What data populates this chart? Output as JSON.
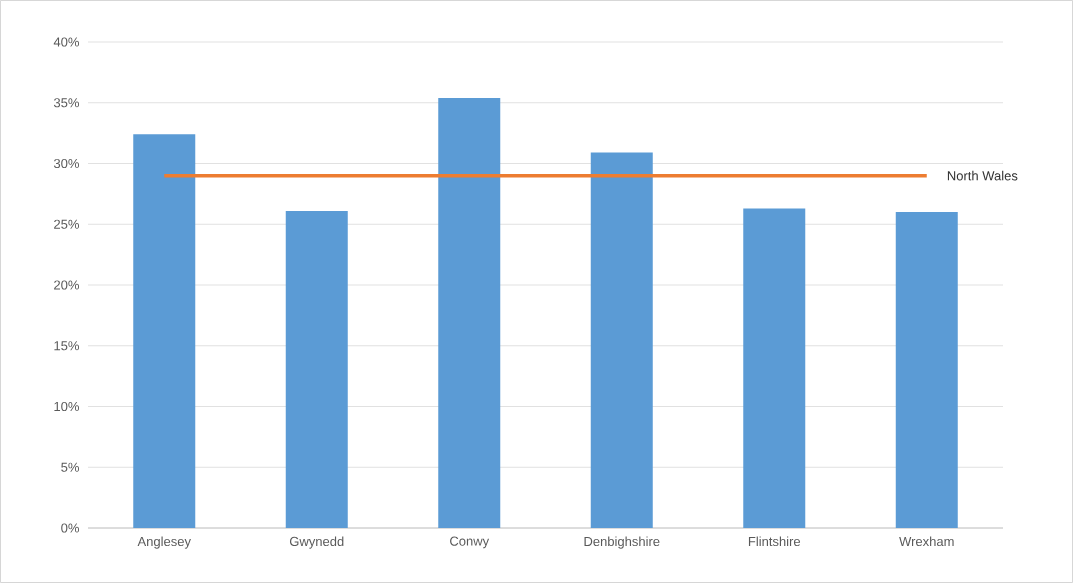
{
  "chart_data": {
    "type": "bar",
    "categories": [
      "Anglesey",
      "Gwynedd",
      "Conwy",
      "Denbighshire",
      "Flintshire",
      "Wrexham"
    ],
    "values": [
      32.4,
      26.1,
      35.4,
      30.9,
      26.3,
      26.0
    ],
    "color": "#5b9bd5",
    "ylim": [
      0,
      40
    ],
    "yticks": [
      {
        "value": 0,
        "label": "0%"
      },
      {
        "value": 5,
        "label": "5%"
      },
      {
        "value": 10,
        "label": "10%"
      },
      {
        "value": 15,
        "label": "15%"
      },
      {
        "value": 20,
        "label": "20%"
      },
      {
        "value": 25,
        "label": "25%"
      },
      {
        "value": 30,
        "label": "30%"
      },
      {
        "value": 35,
        "label": "35%"
      },
      {
        "value": 40,
        "label": "40%"
      }
    ],
    "grid": "y",
    "ref_lines": [
      {
        "axis": "y",
        "value": 29,
        "label": "North Wales",
        "color": "#ed7d31"
      }
    ]
  }
}
